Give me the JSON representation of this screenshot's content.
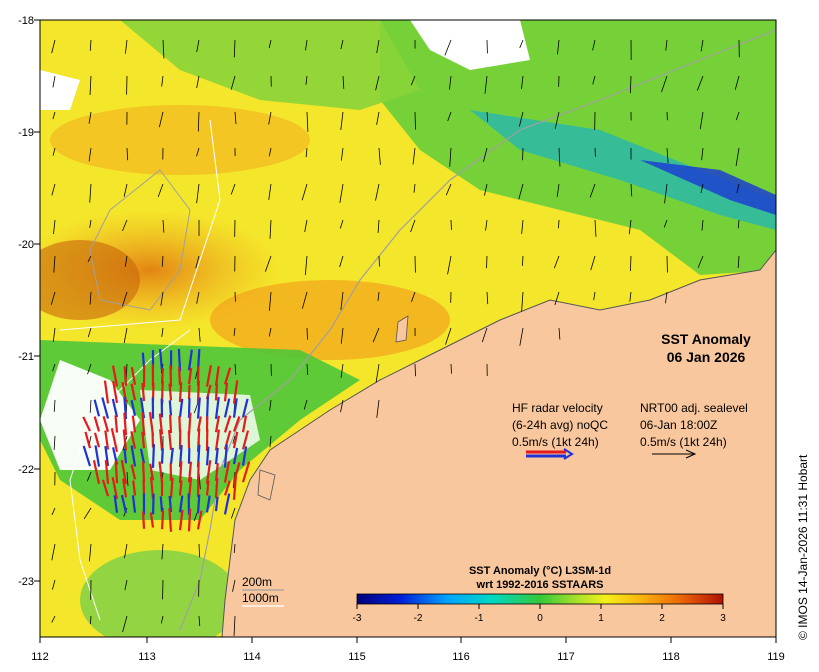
{
  "map": {
    "title_line1": "SST Anomaly",
    "title_line2": "06 Jan 2026",
    "lon_ticks": [
      "112",
      "113",
      "114",
      "115",
      "116",
      "117",
      "118",
      "119"
    ],
    "lat_ticks": [
      "-18",
      "-19",
      "-20",
      "-21",
      "-22",
      "-23"
    ],
    "hf_radar": {
      "line1": "HF radar velocity",
      "line2": "(6-24h avg) noQC",
      "line3": "0.5m/s (1kt 24h)"
    },
    "sealevel": {
      "line1": "NRT00 adj. sealevel",
      "line2": "06-Jan 18:00Z",
      "line3": "0.5m/s (1kt 24h)"
    },
    "isobath_200": "200m",
    "isobath_1000": "1000m",
    "colorbar": {
      "title_line1": "SST Anomaly (°C) L3SM-1d",
      "title_line2": "wrt 1992-2016 SSTAARS",
      "ticks": [
        "-3",
        "-2",
        "-1",
        "0",
        "1",
        "2",
        "3"
      ]
    },
    "credit": "© IMOS 14-Jan-2026 11:31 Hobart",
    "colors": {
      "land": "#f9c79d",
      "radar_red": "#e41a1c",
      "radar_blue": "#1f32d6",
      "coast": "#7f7f7f"
    }
  }
}
